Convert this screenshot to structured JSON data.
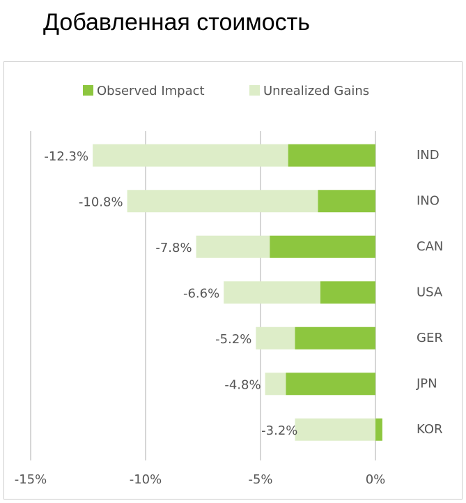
{
  "chart_data": {
    "type": "bar",
    "orientation": "horizontal",
    "stacked": true,
    "title": "Добавленная стоимость",
    "categories": [
      "IND",
      "INO",
      "CAN",
      "USA",
      "GER",
      "JPN",
      "KOR"
    ],
    "series": [
      {
        "name": "Observed Impact",
        "color": "#8dc63f",
        "values": [
          -3.8,
          -2.5,
          -4.6,
          -2.4,
          -3.5,
          -3.9,
          0.3
        ]
      },
      {
        "name": "Unrealized Gains",
        "color": "#ddedc8",
        "values": [
          -8.5,
          -8.3,
          -3.2,
          -4.2,
          -1.7,
          -0.9,
          -3.5
        ]
      }
    ],
    "totals": [
      -12.3,
      -10.8,
      -7.8,
      -6.6,
      -5.2,
      -4.8,
      -3.2
    ],
    "total_labels": [
      "-12.3%",
      "-10.8%",
      "-7.8%",
      "-6.6%",
      "-5.2%",
      "-4.8%",
      "-3.2%"
    ],
    "xlim": [
      -15,
      0.5
    ],
    "xticks": [
      {
        "value": -15,
        "label": "-15%"
      },
      {
        "value": -10,
        "label": "-10%"
      },
      {
        "value": -5,
        "label": "-5%"
      },
      {
        "value": 0,
        "label": "0%"
      }
    ],
    "grid": true,
    "legend": "top"
  }
}
